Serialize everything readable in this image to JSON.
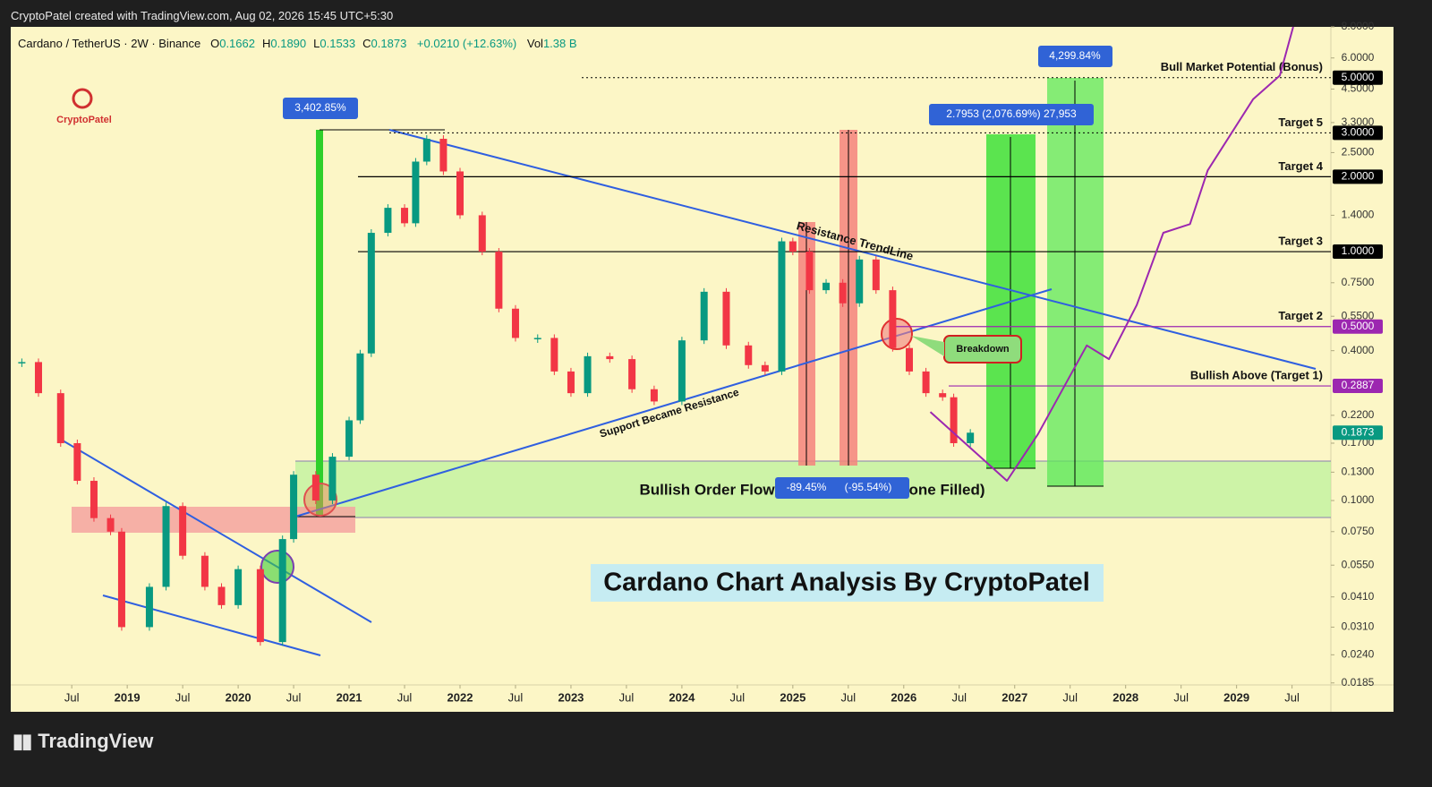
{
  "header": {
    "text": "CryptoPatel created with TradingView.com, Aug 02, 2026 15:45 UTC+5:30",
    "symbol": "Cardano / TetherUS · 2W · Binance",
    "ohlc": [
      {
        "label": "O",
        "value": "0.1662"
      },
      {
        "label": "H",
        "value": "0.1890"
      },
      {
        "label": "L",
        "value": "0.1533"
      },
      {
        "label": "C",
        "value": "0.1873"
      }
    ],
    "change": "+0.0210 (+12.63%)",
    "volume_label": "Vol",
    "volume": "1.38 B"
  },
  "annotations": {
    "logo": "CryptoPatel",
    "gain_2020": "3,402.85%",
    "gain_target5": "2.7953 (2,076.69%) 27,953",
    "gain_bonus": "4,299.84%",
    "drop_1": "-89.45%",
    "drop_2": "(-95.54%)",
    "resistance": "Resistance TrendLine",
    "support": "Support Became Resistance",
    "breakdown": "Breakdown",
    "zone_1": "Bullish Order Flow",
    "zone_2": "one Filled)",
    "headline": "Cardano Chart Analysis By CryptoPatel"
  },
  "chart_data": {
    "type": "candlestick",
    "log_scale": true,
    "grid": false,
    "up_color": "#089981",
    "down_color": "#f23645",
    "x": [
      2018.05,
      2018.2,
      2018.4,
      2018.55,
      2018.7,
      2018.85,
      2018.95,
      2019.2,
      2019.35,
      2019.5,
      2019.7,
      2019.85,
      2020.0,
      2020.2,
      2020.4,
      2020.5,
      2020.7,
      2020.85,
      2021.0,
      2021.1,
      2021.2,
      2021.35,
      2021.5,
      2021.6,
      2021.7,
      2021.85,
      2022.0,
      2022.2,
      2022.35,
      2022.5,
      2022.7,
      2022.85,
      2023.0,
      2023.15,
      2023.35,
      2023.55,
      2023.75,
      2024.0,
      2024.2,
      2024.4,
      2024.6,
      2024.75,
      2024.9,
      2025.0,
      2025.15,
      2025.3,
      2025.45,
      2025.6,
      2025.75,
      2025.9,
      2026.05,
      2026.2,
      2026.35,
      2026.45,
      2026.6
    ],
    "values": [
      0.36,
      0.27,
      0.17,
      0.12,
      0.085,
      0.075,
      0.031,
      0.045,
      0.095,
      0.06,
      0.045,
      0.038,
      0.053,
      0.027,
      0.07,
      0.127,
      0.1,
      0.15,
      0.21,
      0.39,
      1.19,
      1.5,
      1.3,
      2.3,
      2.84,
      2.1,
      1.4,
      1.0,
      0.59,
      0.45,
      0.45,
      0.33,
      0.27,
      0.38,
      0.37,
      0.28,
      0.25,
      0.44,
      0.69,
      0.42,
      0.35,
      0.33,
      1.1,
      1.0,
      0.7,
      0.75,
      0.62,
      0.93,
      0.7,
      0.41,
      0.33,
      0.27,
      0.26,
      0.17,
      0.1873
    ],
    "projection": {
      "color": "#9c27b0",
      "x": [
        2026.24,
        2026.93,
        2027.21,
        2027.65,
        2027.85,
        2028.1,
        2028.34,
        2028.58,
        2028.74,
        2029.15,
        2029.39,
        2029.51
      ],
      "values": [
        0.227,
        0.12,
        0.185,
        0.42,
        0.37,
        0.61,
        1.19,
        1.29,
        2.12,
        4.1,
        5.1,
        8.0
      ]
    },
    "levels": [
      {
        "value": 5,
        "label": "5.0000",
        "name": "Bull Market Potential (Bonus)",
        "color": "#000000",
        "style": "dotted"
      },
      {
        "value": 3,
        "label": "3.0000",
        "name": "Target 5",
        "color": "#000000",
        "style": "dotted"
      },
      {
        "value": 2,
        "label": "2.0000",
        "name": "Target 4",
        "color": "#000000",
        "style": "solid"
      },
      {
        "value": 1,
        "label": "1.0000",
        "name": "Target 3",
        "color": "#000000",
        "style": "solid"
      },
      {
        "value": 0.5,
        "label": "0.5000",
        "name": "Target 2",
        "color": "#9c27b0",
        "style": "solid"
      },
      {
        "value": 0.2887,
        "label": "0.2887",
        "name": "Bullish Above (Target 1)",
        "color": "#9c27b0",
        "style": "solid"
      },
      {
        "value": 0.1873,
        "label": "0.1873",
        "color": "#089981",
        "style": "none"
      }
    ],
    "xlim": [
      2017.95,
      2029.85
    ],
    "ylim": [
      0.01816,
      8.0
    ],
    "xticks": [
      {
        "value": 2018.5,
        "label": "Jul"
      },
      2019,
      {
        "value": 2019.5,
        "label": "Jul"
      },
      2020,
      {
        "value": 2020.5,
        "label": "Jul"
      },
      2021,
      {
        "value": 2021.5,
        "label": "Jul"
      },
      2022,
      {
        "value": 2022.5,
        "label": "Jul"
      },
      2023,
      {
        "value": 2023.5,
        "label": "Jul"
      },
      2024,
      {
        "value": 2024.5,
        "label": "Jul"
      },
      2025,
      {
        "value": 2025.5,
        "label": "Jul"
      },
      2026,
      {
        "value": 2026.5,
        "label": "Jul"
      },
      2027,
      {
        "value": 2027.5,
        "label": "Jul"
      },
      2028,
      {
        "value": 2028.5,
        "label": "Jul"
      },
      2029,
      {
        "value": 2029.5,
        "label": "Jul"
      }
    ],
    "yticks": [
      {
        "value": 8,
        "label": "8.0000"
      },
      {
        "value": 6,
        "label": "6.0000"
      },
      {
        "value": 4.5,
        "label": "4.5000"
      },
      {
        "value": 3.3,
        "label": "3.3000"
      },
      {
        "value": 2.5,
        "label": "2.5000"
      },
      {
        "value": 1.4,
        "label": "1.4000"
      },
      {
        "value": 0.75,
        "label": "0.7500"
      },
      {
        "value": 0.55,
        "label": "0.5500"
      },
      {
        "value": 0.4,
        "label": "0.4000"
      },
      {
        "value": 0.22,
        "label": "0.2200"
      },
      {
        "value": 0.17,
        "label": "0.1700"
      },
      {
        "value": 0.13,
        "label": "0.1300"
      },
      {
        "value": 0.1,
        "label": "0.1000"
      },
      {
        "value": 0.075,
        "label": "0.0750"
      },
      {
        "value": 0.055,
        "label": "0.0550"
      },
      {
        "value": 0.041,
        "label": "0.0410"
      },
      {
        "value": 0.031,
        "label": "0.0310"
      },
      {
        "value": 0.024,
        "label": "0.0240"
      },
      {
        "value": 0.0185,
        "label": "0.0185"
      }
    ]
  },
  "footer": {
    "brand": "TradingView"
  }
}
